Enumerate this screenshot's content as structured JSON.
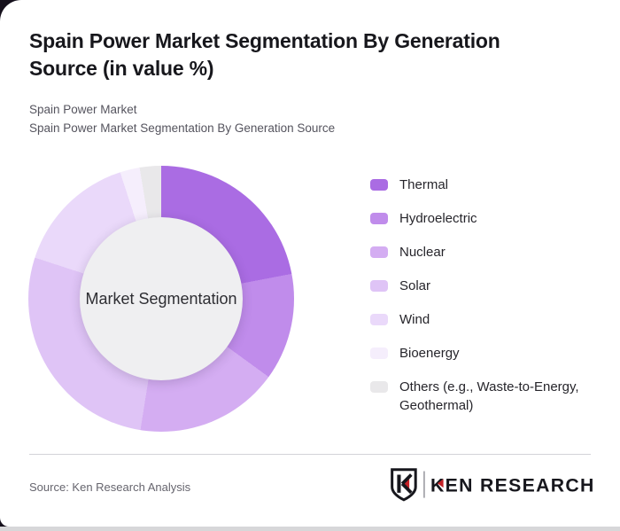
{
  "page": {
    "background_dark": "#15101c",
    "bottom_strip_color": "#d7d7d9",
    "card_color": "#ffffff"
  },
  "header": {
    "title": "Spain Power Market Segmentation By Generation Source (in value %)",
    "subtitle_line1": "Spain Power Market",
    "subtitle_line2": "Spain Power Market Segmentation By Generation Source"
  },
  "chart_data": {
    "type": "pie",
    "donut": true,
    "title": "Spain Power Market Segmentation By Generation Source (in value %)",
    "center_label": "Market Segmentation",
    "start_angle_deg": 0,
    "direction": "clockwise",
    "legend_position": "right",
    "categories": [
      "Thermal",
      "Hydroelectric",
      "Nuclear",
      "Solar",
      "Wind",
      "Bioenergy",
      "Others (e.g., Waste-to-Energy, Geothermal)"
    ],
    "values": [
      22,
      13,
      17.5,
      27.5,
      15,
      2.4,
      2.6
    ],
    "values_are_estimates_from_arc_angles": true,
    "colors": [
      "#aa6ce3",
      "#c08ceb",
      "#d4adf2",
      "#dfc4f6",
      "#ead9fa",
      "#f5eefc",
      "#e9e8ea"
    ],
    "hole_color": "#efeff1"
  },
  "footer": {
    "source": "Source: Ken Research Analysis",
    "logo_text": "KEN RESEARCH",
    "logo_red": "#c42127",
    "logo_black": "#17171d"
  }
}
